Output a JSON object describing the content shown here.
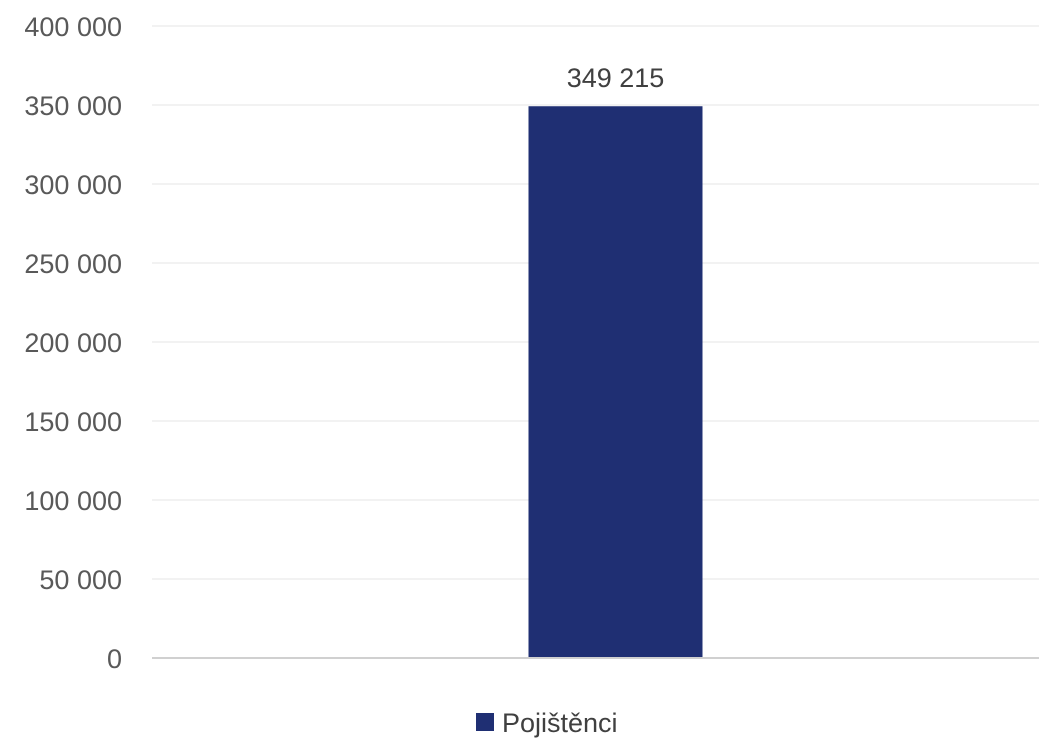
{
  "chart_data": {
    "type": "bar",
    "categories": [
      ""
    ],
    "series": [
      {
        "name": "Pojištěnci",
        "values": [
          349215
        ],
        "color": "#1F2F73"
      }
    ],
    "data_labels": [
      "349 215"
    ],
    "y_ticks": [
      0,
      50000,
      100000,
      150000,
      200000,
      250000,
      300000,
      350000,
      400000
    ],
    "y_tick_labels": [
      "0",
      "50 000",
      "100 000",
      "150 000",
      "200 000",
      "250 000",
      "300 000",
      "350 000",
      "400 000"
    ],
    "ylim": [
      0,
      400000
    ],
    "grid": true,
    "legend_position": "bottom",
    "gridline_color": "#EDEDED",
    "axis_color": "#D0D0D0"
  }
}
